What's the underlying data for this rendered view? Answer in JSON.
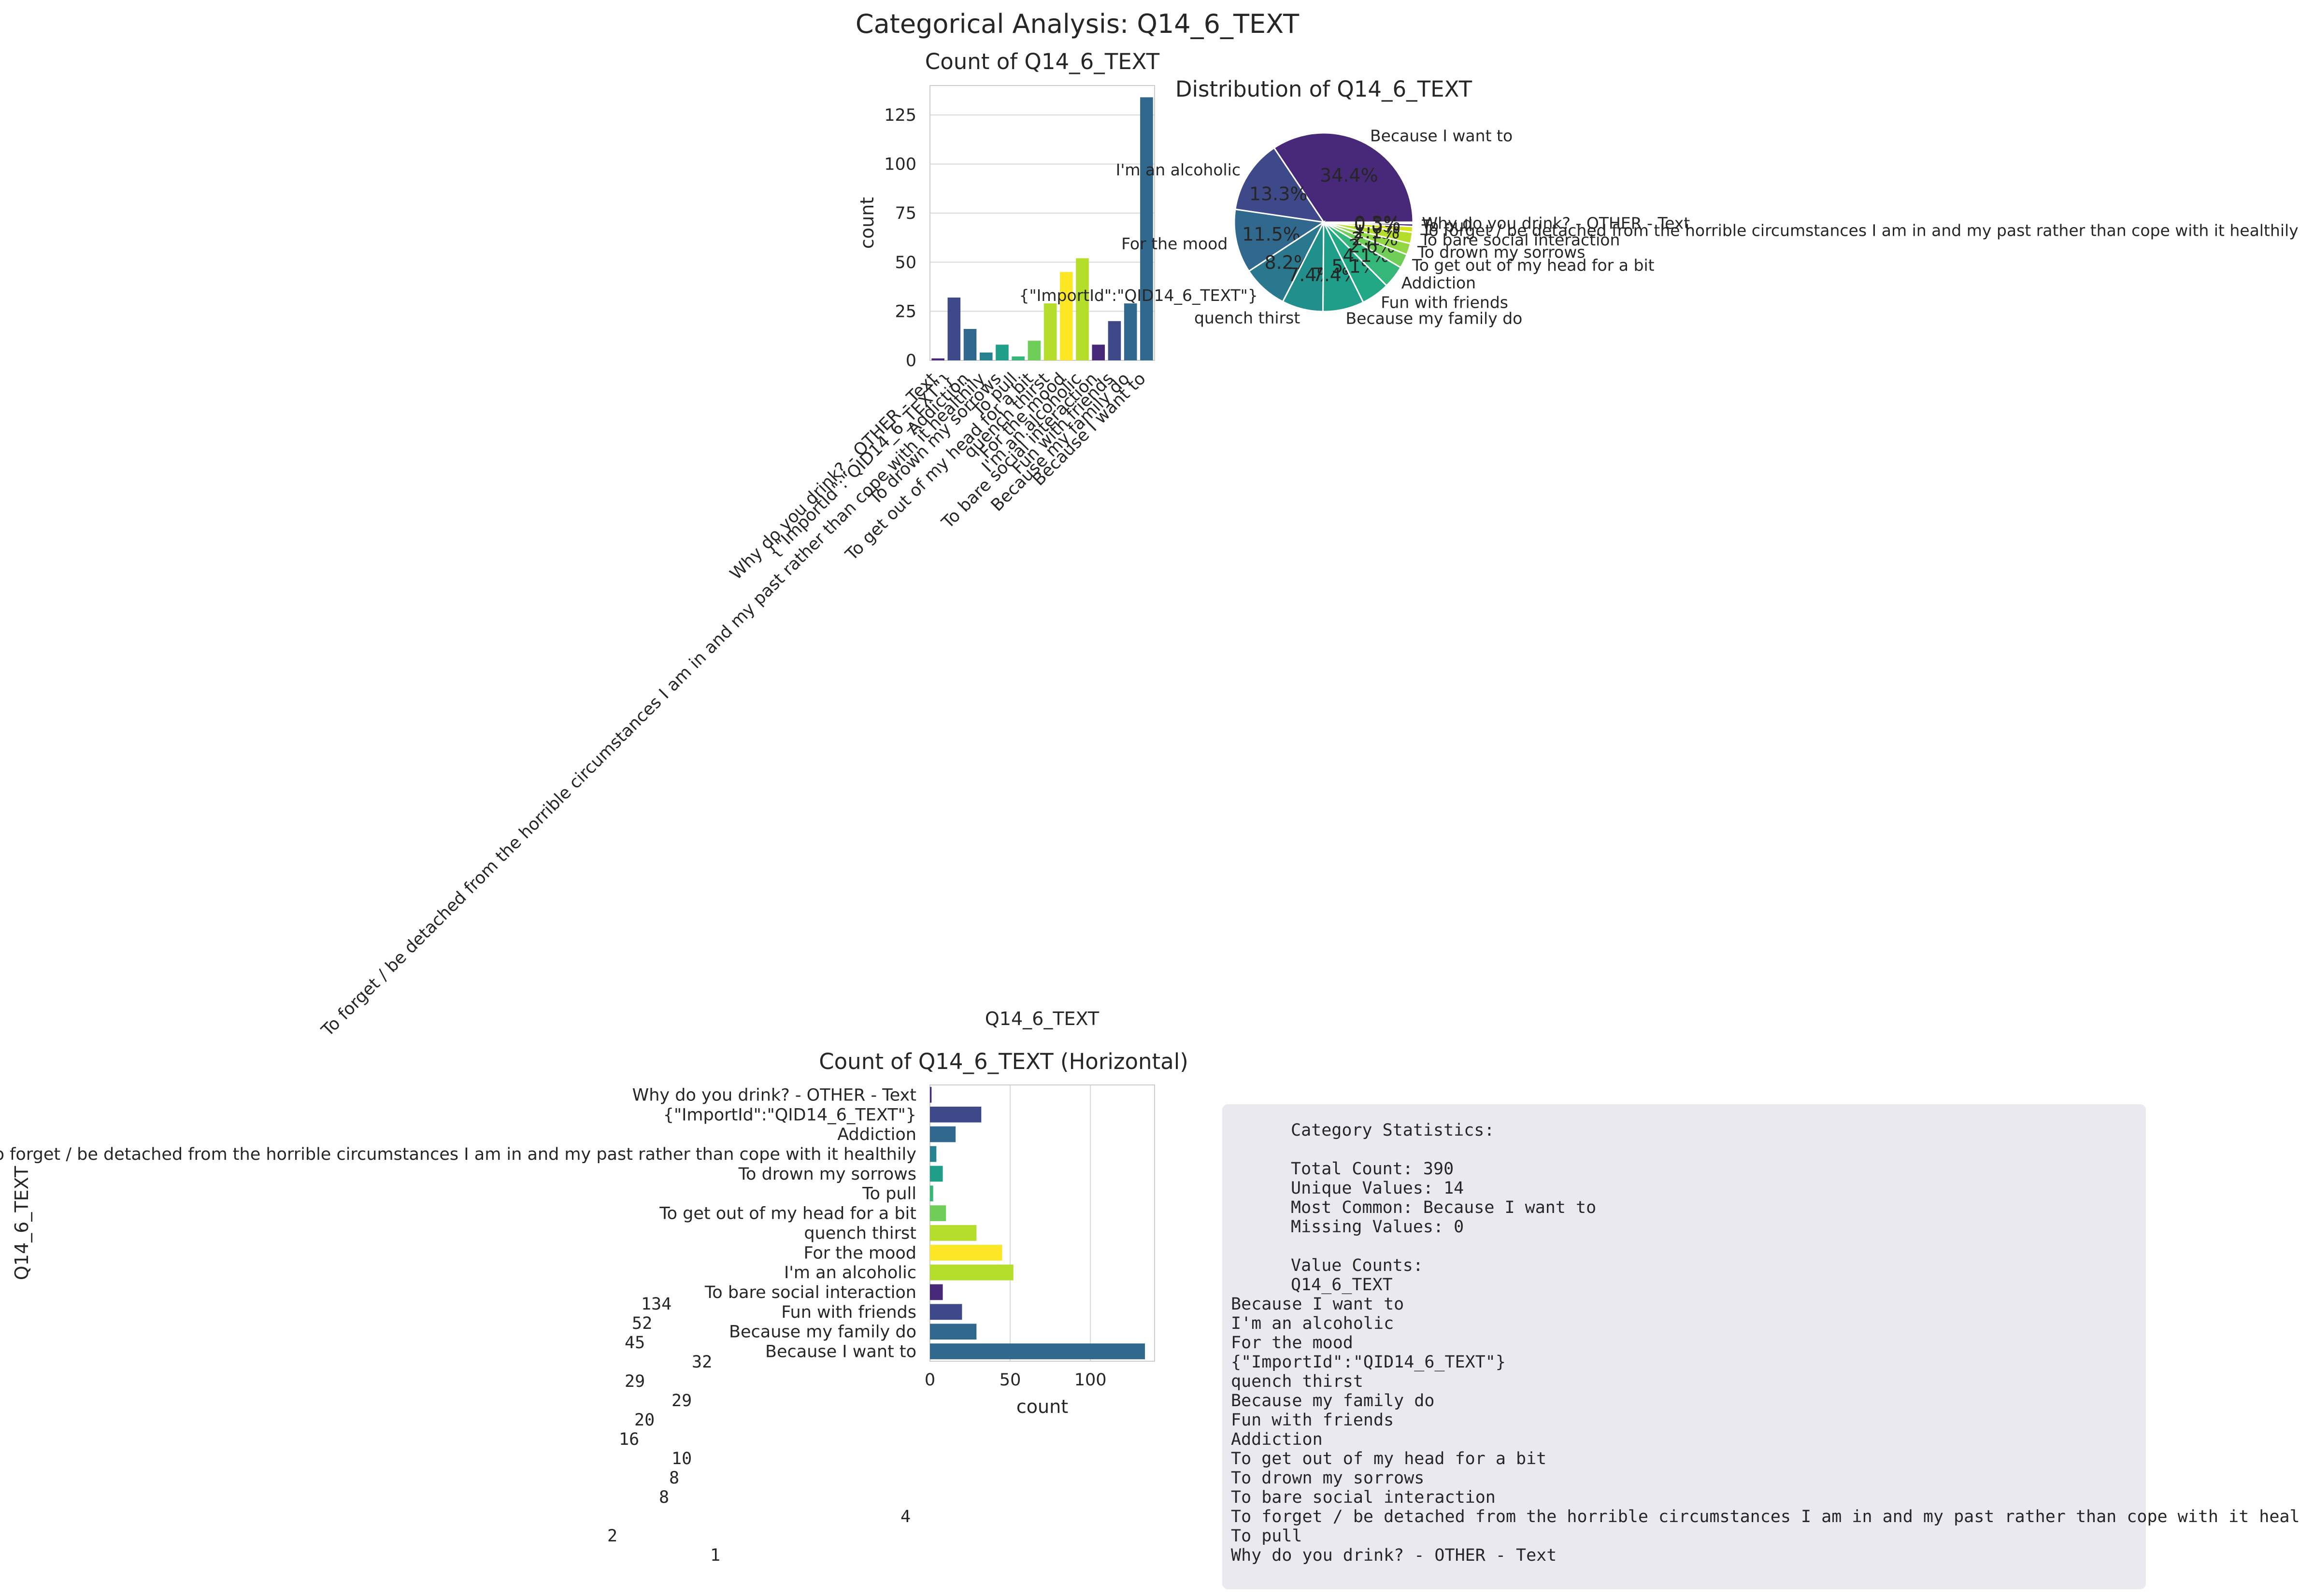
{
  "suptitle": "Categorical Analysis: Q14_6_TEXT",
  "colors": {
    "palette": [
      "#482878",
      "#3e4989",
      "#31688e",
      "#26828e",
      "#1f9e89",
      "#35b779",
      "#6ece58",
      "#b5de2b",
      "#fde725"
    ],
    "grid": "#d9d9d9",
    "axis": "#cccccc"
  },
  "chart_data": [
    {
      "type": "bar",
      "title": "Count of Q14_6_TEXT",
      "xlabel": "Q14_6_TEXT",
      "ylabel": "count",
      "ylim": [
        0,
        140
      ],
      "yticks": [
        0,
        25,
        50,
        75,
        100,
        125
      ],
      "grid": true,
      "categories": [
        "Why do you drink? - OTHER - Text",
        "{\"ImportId\":\"QID14_6_TEXT\"}",
        "Addiction",
        "To forget / be detached from the horrible circumstances I am in and my past rather than cope with it healthily",
        "To drown my sorrows",
        "To pull",
        "To get out of my head for a bit",
        "quench thirst",
        "For the mood",
        "I'm an alcoholic ",
        "To bare social interaction",
        "Fun with friends",
        "Because my family do",
        "Because I want to"
      ],
      "values": [
        1,
        32,
        16,
        4,
        8,
        2,
        10,
        29,
        45,
        52,
        8,
        20,
        29,
        134
      ],
      "bar_colors": [
        "#482878",
        "#3e4989",
        "#31688e",
        "#26828e",
        "#1f9e89",
        "#35b779",
        "#6ece58",
        "#b5de2b",
        "#fde725",
        "#b5de2b",
        "#482878",
        "#3e4989",
        "#31688e",
        "#31688e"
      ]
    },
    {
      "type": "pie",
      "title": "Distribution of Q14_6_TEXT",
      "labels": [
        "Because I want to",
        "I'm an alcoholic ",
        "For the mood",
        "{\"ImportId\":\"QID14_6_TEXT\"}",
        "quench thirst",
        "Because my family do",
        "Fun with friends",
        "Addiction",
        "To get out of my head for a bit",
        "To drown my sorrows",
        "To bare social interaction",
        "To forget / be detached from the horrible circumstances I am in and my past rather than cope with it healthily",
        "To pull",
        "Why do you drink? - OTHER - Text"
      ],
      "values": [
        134,
        52,
        45,
        32,
        29,
        29,
        20,
        16,
        10,
        8,
        8,
        4,
        2,
        1
      ],
      "pct_labels": [
        "34.4%",
        "13.3%",
        "11.5%",
        "8.2%",
        "7.4%",
        "7.4%",
        "5.1%",
        "4.1%",
        "2.6%",
        "2.1%",
        "2.1%",
        "1.0%",
        "0.5%",
        "0.3%"
      ],
      "slice_colors": [
        "#482878",
        "#3e4989",
        "#31688e",
        "#2a788e",
        "#21908d",
        "#1f9e89",
        "#22a884",
        "#35b779",
        "#6ece58",
        "#90d743",
        "#b5de2b",
        "#d8e219",
        "#482878",
        "#3e4989"
      ]
    },
    {
      "type": "bar",
      "orientation": "horizontal",
      "title": "Count of Q14_6_TEXT (Horizontal)",
      "xlabel": "count",
      "ylabel": "Q14_6_TEXT",
      "xlim": [
        0,
        140
      ],
      "xticks": [
        0,
        50,
        100
      ],
      "grid": true,
      "categories": [
        "Why do you drink? - OTHER - Text",
        "{\"ImportId\":\"QID14_6_TEXT\"}",
        "Addiction",
        "To forget / be detached from the horrible circumstances I am in and my past rather than cope with it healthily",
        "To drown my sorrows",
        "To pull",
        "To get out of my head for a bit",
        "quench thirst",
        "For the mood",
        "I'm an alcoholic ",
        "To bare social interaction",
        "Fun with friends",
        "Because my family do",
        "Because I want to"
      ],
      "values": [
        1,
        32,
        16,
        4,
        8,
        2,
        10,
        29,
        45,
        52,
        8,
        20,
        29,
        134
      ],
      "bar_colors": [
        "#482878",
        "#3e4989",
        "#31688e",
        "#26828e",
        "#1f9e89",
        "#35b779",
        "#6ece58",
        "#b5de2b",
        "#fde725",
        "#b5de2b",
        "#482878",
        "#3e4989",
        "#31688e",
        "#31688e"
      ]
    }
  ],
  "stats": {
    "header": "Category Statistics:",
    "total": "Total Count: 390",
    "unique": "Unique Values: 14",
    "most_common": "Most Common: Because I want to",
    "missing": "Missing Values: 0",
    "value_counts_header": "Value Counts:",
    "series_name": "Q14_6_TEXT",
    "rows": [
      {
        "label": "Because I want to",
        "value": "134"
      },
      {
        "label": "I'm an alcoholic ",
        "value": "52"
      },
      {
        "label": "For the mood",
        "value": "45"
      },
      {
        "label": "{\"ImportId\":\"QID14_6_TEXT\"}",
        "value": "32"
      },
      {
        "label": "quench thirst",
        "value": "29"
      },
      {
        "label": "Because my family do",
        "value": "29"
      },
      {
        "label": "Fun with friends",
        "value": "20"
      },
      {
        "label": "Addiction",
        "value": "16"
      },
      {
        "label": "To get out of my head for a bit",
        "value": "10"
      },
      {
        "label": "To drown my sorrows",
        "value": "8"
      },
      {
        "label": "To bare social interaction",
        "value": "8"
      },
      {
        "label": "To forget / be detached from the horrible circumstances I am in and my past rather than cope with it healthily",
        "value": "4"
      },
      {
        "label": "To pull",
        "value": "2"
      },
      {
        "label": "Why do you drink? - OTHER - Text",
        "value": "1"
      }
    ]
  }
}
